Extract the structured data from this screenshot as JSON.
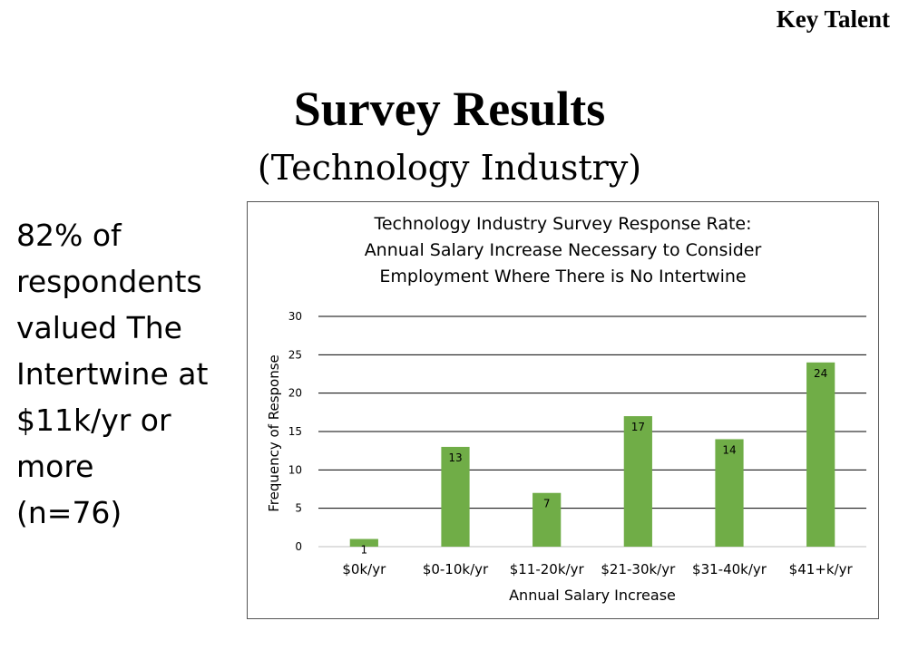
{
  "header": {
    "corner_label": "Key Talent"
  },
  "slide": {
    "title": "Survey Results",
    "subtitle": "(Technology Industry)"
  },
  "sidebar": {
    "lines": [
      "82% of",
      "respondents",
      "valued The",
      "Intertwine at",
      "$11k/yr or",
      "more",
      "(n=76)"
    ]
  },
  "chart_data": {
    "type": "bar",
    "title_lines": [
      "Technology Industry Survey Response Rate:",
      "Annual Salary Increase Necessary to Consider",
      "Employment Where There is No Intertwine"
    ],
    "categories": [
      "$0k/yr",
      "$0-10k/yr",
      "$11-20k/yr",
      "$21-30k/yr",
      "$31-40k/yr",
      "$41+k/yr"
    ],
    "values": [
      1,
      13,
      7,
      17,
      14,
      24
    ],
    "xlabel": "Annual Salary Increase",
    "ylabel": "Frequency of Response",
    "ylim": [
      0,
      30
    ],
    "yticks": [
      0,
      5,
      10,
      15,
      20,
      25,
      30
    ],
    "grid": true,
    "legend": false,
    "bar_color": "#70ad47",
    "data_labels": "inside-end"
  }
}
